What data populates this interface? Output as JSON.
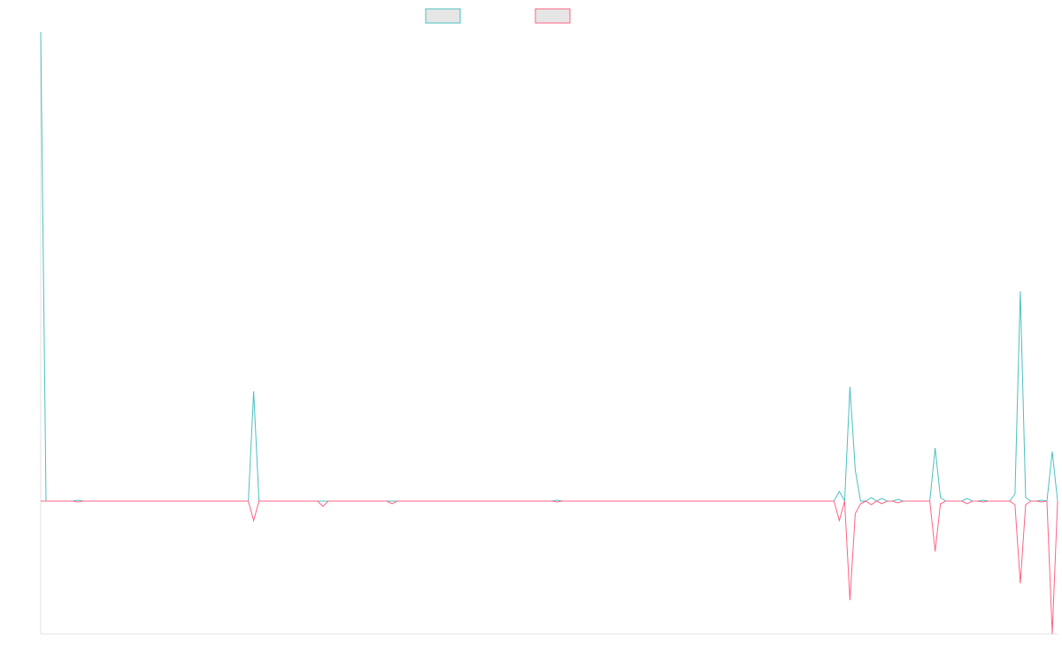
{
  "chart_data": {
    "type": "line",
    "x": [
      0,
      1,
      6,
      7,
      8,
      39,
      40,
      41,
      52,
      53,
      54,
      65,
      66,
      67,
      96,
      97,
      98,
      149,
      150,
      151,
      152,
      153,
      154,
      155,
      156,
      157,
      158,
      159,
      160,
      161,
      162,
      167,
      168,
      169,
      170,
      173,
      174,
      175,
      176,
      177,
      178,
      182,
      183,
      184,
      185,
      186,
      187,
      188,
      189,
      190,
      191
    ],
    "series": [
      {
        "color": "#4bc0c0",
        "values": [
          530,
          0,
          0,
          1,
          0,
          0,
          124,
          0,
          0,
          0,
          0,
          0,
          0,
          0,
          0,
          1,
          0,
          0,
          11,
          0,
          129,
          35,
          0,
          0,
          4,
          0,
          3,
          0,
          0,
          2,
          0,
          0,
          60,
          4,
          0,
          0,
          3,
          0,
          0,
          1,
          0,
          0,
          8,
          237,
          4,
          0,
          0,
          1,
          0,
          56,
          0
        ]
      },
      {
        "color": "#ff6384",
        "values": [
          0,
          0,
          0,
          -1,
          0,
          0,
          -22,
          0,
          0,
          -6,
          0,
          0,
          -3,
          0,
          0,
          -1,
          0,
          0,
          -22,
          0,
          -112,
          -14,
          -3,
          0,
          -4,
          0,
          -3,
          0,
          0,
          -2,
          0,
          0,
          -57,
          -3,
          0,
          0,
          -3,
          0,
          0,
          -1,
          0,
          0,
          -4,
          -93,
          -4,
          0,
          0,
          -1,
          0,
          -150,
          0
        ]
      }
    ],
    "xlim": [
      0,
      191
    ],
    "ylim": [
      -150,
      530
    ]
  }
}
